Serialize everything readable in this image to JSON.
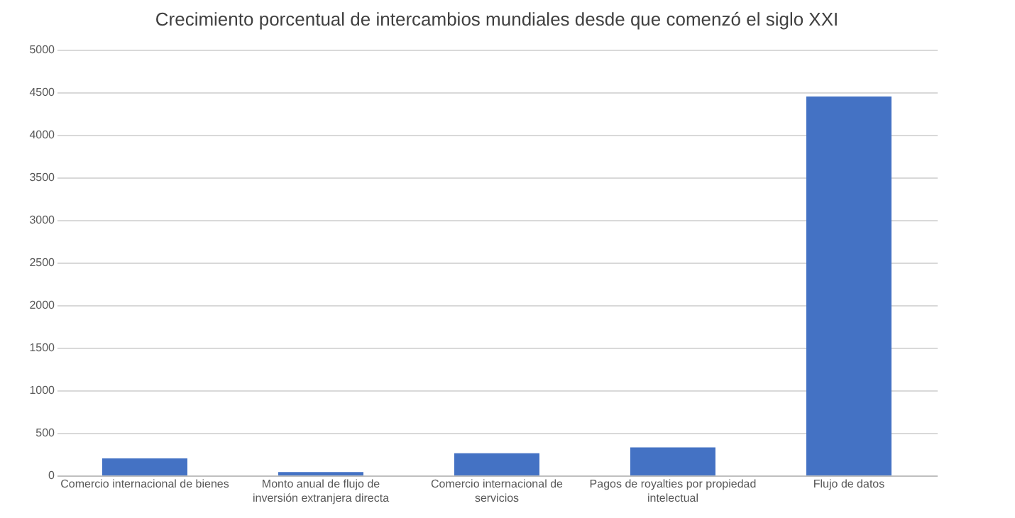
{
  "chart_data": {
    "type": "bar",
    "title": "Crecimiento porcentual de intercambios mundiales desde que comenzó el siglo XXI",
    "categories": [
      "Comercio internacional de bienes",
      "Monto anual de flujo de inversión extranjera directa",
      "Comercio internacional de servicios",
      "Pagos de royalties por propiedad intelectual",
      "Flujo de datos"
    ],
    "values": [
      200,
      40,
      260,
      330,
      4450
    ],
    "color": "#4472c4",
    "ylim": [
      0,
      5000
    ],
    "yticks": [
      0,
      500,
      1000,
      1500,
      2000,
      2500,
      3000,
      3500,
      4000,
      4500,
      5000
    ],
    "grid": true
  }
}
